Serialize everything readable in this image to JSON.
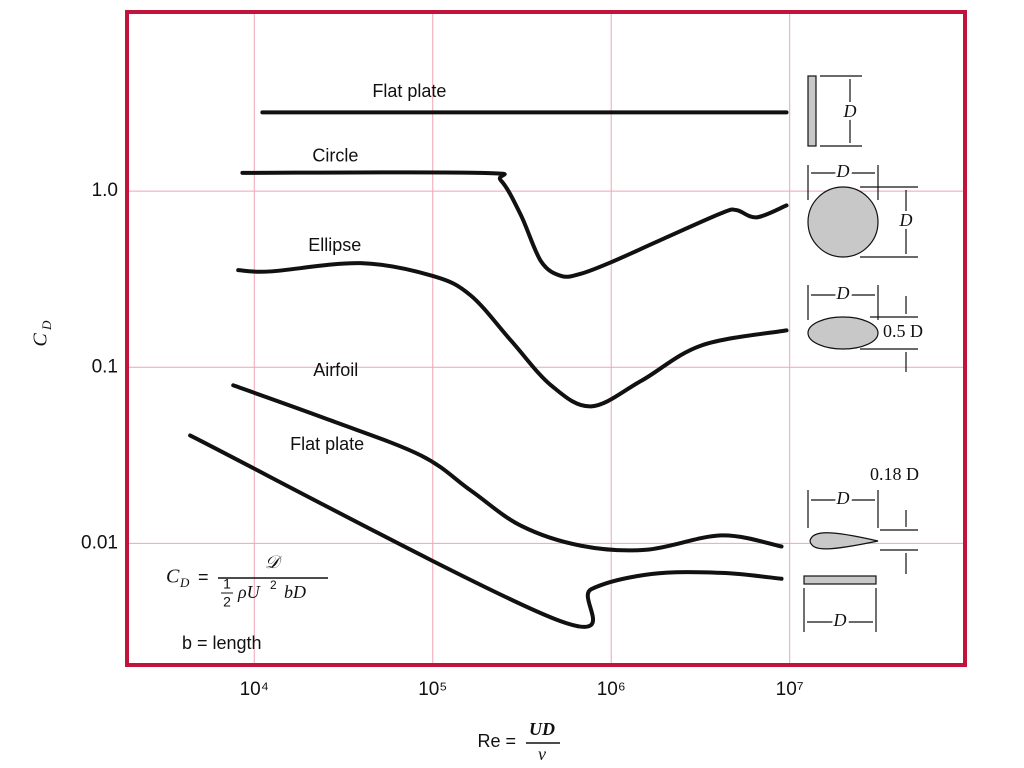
{
  "chart_data": {
    "type": "line",
    "log_x": true,
    "log_y": true,
    "grid": true,
    "frame_color": "#c0143c",
    "grid_color": "#f0a4b4",
    "y_label": {
      "symbol": "C",
      "subscript": "D"
    },
    "x_label": {
      "lhs": "Re =",
      "numerator": "UD",
      "denominator": "ν"
    },
    "xlim": [
      1936,
      96000000
    ],
    "ylim": [
      0.00204,
      10.4
    ],
    "xticks": [
      {
        "value": 10000,
        "label": "10⁴"
      },
      {
        "value": 100000,
        "label": "10⁵"
      },
      {
        "value": 1000000,
        "label": "10⁶"
      },
      {
        "value": 10000000,
        "label": "10⁷"
      }
    ],
    "yticks": [
      {
        "value": 1,
        "label": "1.0"
      },
      0.1,
      0.01
    ],
    "series": [
      {
        "name": "Flat plate",
        "color": "#111111",
        "x": [
          11100,
          9600000
        ],
        "values": [
          2.8,
          2.8
        ]
      },
      {
        "name": "Circle",
        "color": "#111111",
        "x": [
          8580,
          186000,
          241000,
          312000,
          404000,
          524000,
          678000,
          1000000,
          1910000,
          4150000,
          5040000,
          6530000,
          9600000
        ],
        "values": [
          1.27,
          1.27,
          1.15,
          0.73,
          0.4,
          0.33,
          0.34,
          0.395,
          0.53,
          0.75,
          0.78,
          0.71,
          0.83
        ]
      },
      {
        "name": "Ellipse",
        "color": "#111111",
        "x": [
          8130,
          12300,
          39500,
          100000,
          163000,
          274000,
          460000,
          773000,
          1480000,
          3200000,
          9600000
        ],
        "values": [
          0.356,
          0.35,
          0.39,
          0.33,
          0.256,
          0.142,
          0.079,
          0.06,
          0.084,
          0.133,
          0.162
        ]
      },
      {
        "name": "Airfoil",
        "color": "#111111",
        "x": [
          7620,
          26700,
          85700,
          163000,
          312000,
          678000,
          1570000,
          4150000,
          9000000
        ],
        "values": [
          0.079,
          0.05,
          0.0316,
          0.02,
          0.0126,
          0.0097,
          0.0092,
          0.0111,
          0.0096
        ]
      },
      {
        "name": "Flat plate",
        "color": "#111111",
        "x": [
          4370,
          491000,
          773000,
          1680000,
          4150000,
          9000000
        ],
        "values": [
          0.041,
          0.0037,
          0.0055,
          0.0067,
          0.0068,
          0.0063
        ]
      }
    ],
    "formula": {
      "lhs": "C",
      "lhs_sub": "D",
      "eq": "=",
      "numerator": "𝒟",
      "den_one": "1",
      "den_two": "2",
      "den_rest": "ρU",
      "den_exp": "2",
      "den_tail": "bD"
    },
    "note": "b = length",
    "shape_labels": [
      "D",
      "D",
      "D",
      "D",
      "0.5 D",
      "0.18 D",
      "D",
      "D"
    ]
  }
}
